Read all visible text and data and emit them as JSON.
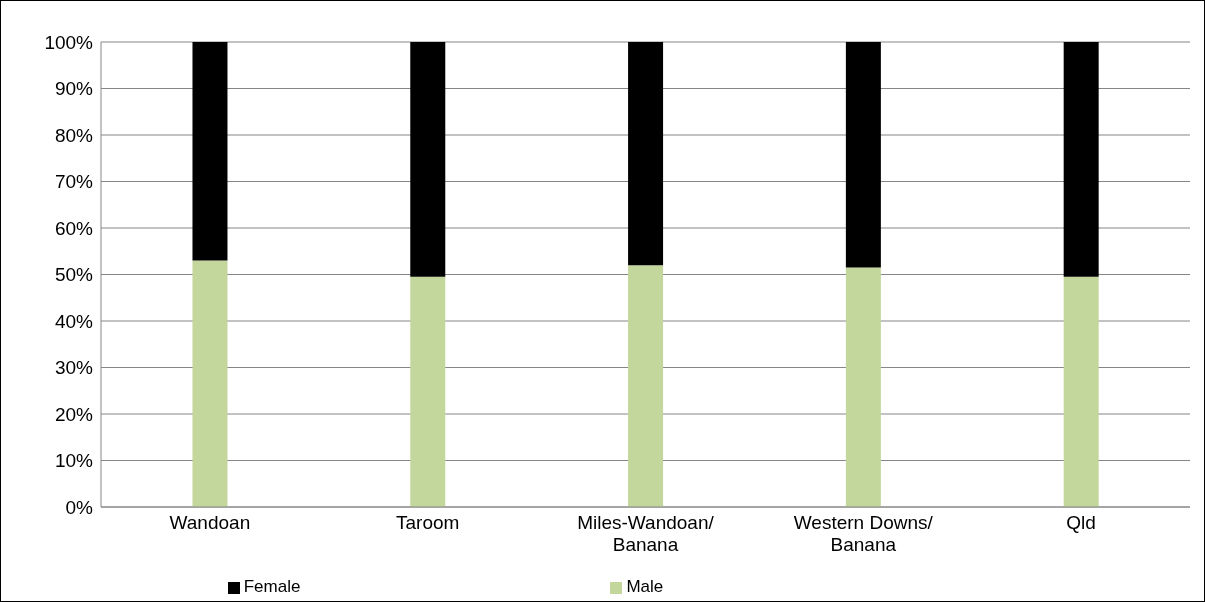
{
  "chart_data": {
    "type": "bar",
    "stacked": true,
    "categories": [
      "Wandoan",
      "Taroom",
      "Miles-Wandoan/ Banana",
      "Western Downs/ Banana",
      "Qld"
    ],
    "series": [
      {
        "name": "Male",
        "color": "#c3d69b",
        "values": [
          53,
          49.5,
          52,
          51.5,
          49.5
        ]
      },
      {
        "name": "Female",
        "color": "#000000",
        "values": [
          47,
          50.5,
          48,
          48.5,
          50.5
        ]
      }
    ],
    "ylim": [
      0,
      100
    ],
    "yticks": [
      {
        "value": 0,
        "label": "0%"
      },
      {
        "value": 10,
        "label": "10%"
      },
      {
        "value": 20,
        "label": "20%"
      },
      {
        "value": 30,
        "label": "30%"
      },
      {
        "value": 40,
        "label": "40%"
      },
      {
        "value": 50,
        "label": "50%"
      },
      {
        "value": 60,
        "label": "60%"
      },
      {
        "value": 70,
        "label": "70%"
      },
      {
        "value": 80,
        "label": "80%"
      },
      {
        "value": 90,
        "label": "90%"
      },
      {
        "value": 100,
        "label": "100%"
      }
    ],
    "grid": "y",
    "legend": "bottom"
  }
}
